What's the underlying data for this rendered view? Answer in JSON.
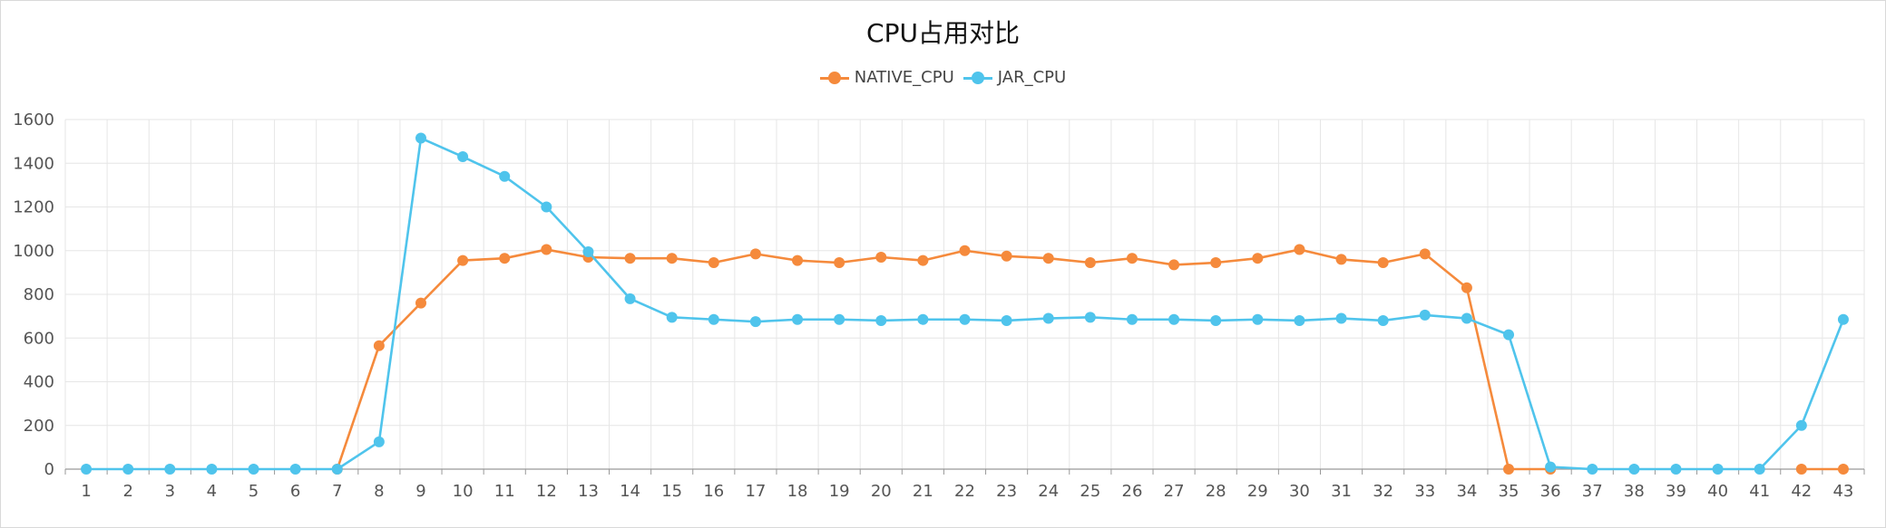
{
  "chart_data": {
    "type": "line",
    "title": "CPU占用对比",
    "xlabel": "",
    "ylabel": "",
    "ylim": [
      0,
      1600
    ],
    "yticks": [
      0,
      200,
      400,
      600,
      800,
      1000,
      1200,
      1400,
      1600
    ],
    "grid": true,
    "legend_position": "top-center",
    "categories": [
      "1",
      "2",
      "3",
      "4",
      "5",
      "6",
      "7",
      "8",
      "9",
      "10",
      "11",
      "12",
      "13",
      "14",
      "15",
      "16",
      "17",
      "18",
      "19",
      "20",
      "21",
      "22",
      "23",
      "24",
      "25",
      "26",
      "27",
      "28",
      "29",
      "30",
      "31",
      "32",
      "33",
      "34",
      "35",
      "36",
      "37",
      "38",
      "39",
      "40",
      "41",
      "42",
      "43"
    ],
    "series": [
      {
        "name": "NATIVE_CPU",
        "color": "#f58a3c",
        "values": [
          null,
          null,
          null,
          null,
          null,
          null,
          0,
          565,
          760,
          955,
          965,
          1005,
          970,
          965,
          965,
          945,
          985,
          955,
          945,
          970,
          955,
          1000,
          975,
          965,
          945,
          965,
          935,
          945,
          965,
          1005,
          960,
          945,
          985,
          830,
          0,
          0,
          null,
          null,
          null,
          null,
          null,
          0,
          0
        ]
      },
      {
        "name": "JAR_CPU",
        "color": "#4fc4ec",
        "values": [
          0,
          0,
          0,
          0,
          0,
          0,
          0,
          125,
          1515,
          1430,
          1340,
          1200,
          995,
          780,
          695,
          685,
          675,
          685,
          685,
          680,
          685,
          685,
          680,
          690,
          695,
          685,
          685,
          680,
          685,
          680,
          690,
          680,
          705,
          690,
          615,
          10,
          0,
          0,
          0,
          0,
          0,
          200,
          685
        ]
      }
    ]
  }
}
